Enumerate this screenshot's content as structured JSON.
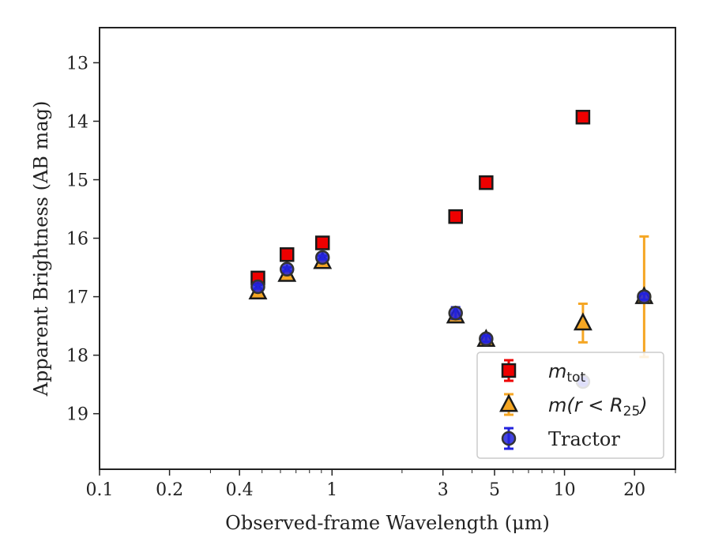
{
  "chart_data": {
    "type": "scatter",
    "title": "",
    "xlabel": "Observed-frame Wavelength (μm)",
    "ylabel": "Apparent Brightness (AB mag)",
    "xscale": "log",
    "xlim": [
      0.1,
      30
    ],
    "ylim": [
      19.95,
      12.4
    ],
    "y_inverted": true,
    "grid": false,
    "legend_position": "bottom-right",
    "xticks": [
      {
        "value": 0.1,
        "label": "0.1"
      },
      {
        "value": 0.2,
        "label": "0.2"
      },
      {
        "value": 0.4,
        "label": "0.4"
      },
      {
        "value": 1,
        "label": "1"
      },
      {
        "value": 3,
        "label": "3"
      },
      {
        "value": 5,
        "label": "5"
      },
      {
        "value": 10,
        "label": "10"
      },
      {
        "value": 20,
        "label": "20"
      }
    ],
    "yticks": [
      {
        "value": 13,
        "label": "13"
      },
      {
        "value": 14,
        "label": "14"
      },
      {
        "value": 15,
        "label": "15"
      },
      {
        "value": 16,
        "label": "16"
      },
      {
        "value": 17,
        "label": "17"
      },
      {
        "value": 18,
        "label": "18"
      },
      {
        "value": 19,
        "label": "19"
      }
    ],
    "series": [
      {
        "name": "m_tot",
        "legend_main": "m",
        "legend_sub": "tot",
        "marker": "square",
        "color": "#ee0000",
        "errcolor": "#ee0000",
        "points": [
          {
            "x": 0.48,
            "y": 16.68,
            "yerr": 0.03
          },
          {
            "x": 0.64,
            "y": 16.28,
            "yerr": 0.03
          },
          {
            "x": 0.91,
            "y": 16.08,
            "yerr": 0.03
          },
          {
            "x": 3.4,
            "y": 15.63,
            "yerr": 0.03
          },
          {
            "x": 4.6,
            "y": 15.05,
            "yerr": 0.03
          },
          {
            "x": 12.0,
            "y": 13.93,
            "yerr": 0.03
          }
        ]
      },
      {
        "name": "m(r < R25)",
        "legend_text": "m(r < R",
        "legend_sub": "25",
        "legend_close": ")",
        "marker": "triangle",
        "color": "#f5a623",
        "errcolor": "#f5a623",
        "points": [
          {
            "x": 0.48,
            "y": 16.92,
            "yerr": 0.03
          },
          {
            "x": 0.64,
            "y": 16.62,
            "yerr": 0.03
          },
          {
            "x": 0.91,
            "y": 16.4,
            "yerr": 0.03
          },
          {
            "x": 3.4,
            "y": 17.33,
            "yerr": 0.05
          },
          {
            "x": 4.6,
            "y": 17.73,
            "yerr": 0.05
          },
          {
            "x": 12.0,
            "y": 17.45,
            "yerr": 0.33
          },
          {
            "x": 22.0,
            "y": 17.0,
            "yerr": 1.03
          }
        ]
      },
      {
        "name": "Tractor",
        "marker": "circle",
        "color": "#2222dd",
        "errcolor": "#2222dd",
        "points": [
          {
            "x": 0.48,
            "y": 16.83,
            "yerr": 0.03
          },
          {
            "x": 0.64,
            "y": 16.53,
            "yerr": 0.03
          },
          {
            "x": 0.91,
            "y": 16.33,
            "yerr": 0.03
          },
          {
            "x": 3.4,
            "y": 17.28,
            "yerr": 0.1
          },
          {
            "x": 4.6,
            "y": 17.72,
            "yerr": 0.05
          },
          {
            "x": 12.0,
            "y": 18.45,
            "yerr": 0.05
          },
          {
            "x": 22.0,
            "y": 17.0,
            "yerr": 0.05
          }
        ]
      }
    ]
  }
}
